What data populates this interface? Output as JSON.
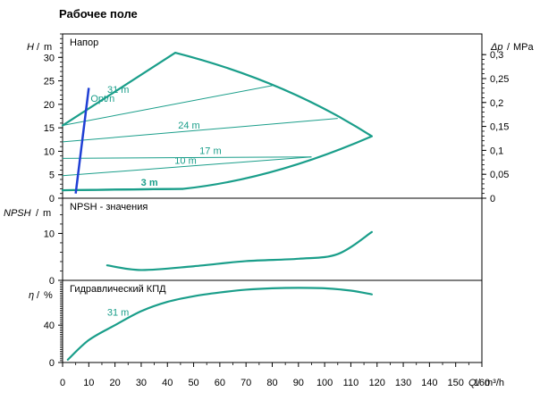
{
  "chart_data": {
    "type": "line",
    "title": "Рабочее поле",
    "x_axis": {
      "label": "Q",
      "unit": "m³/h",
      "range": [
        0,
        160
      ],
      "ticks": [
        "0",
        "10",
        "20",
        "30",
        "40",
        "50",
        "60",
        "70",
        "80",
        "90",
        "100",
        "110",
        "120",
        "130",
        "140",
        "150",
        "160"
      ]
    },
    "panels": [
      {
        "name": "Напор",
        "y_label": "H",
        "y_unit": "m",
        "y_range": [
          0,
          35
        ],
        "y_ticks": [
          "0",
          "5",
          "10",
          "15",
          "20",
          "25",
          "30"
        ],
        "y2_label": "Δp",
        "y2_unit": "MPa",
        "y2_ticks": [
          "0",
          "0,05",
          "0,1",
          "0,15",
          "0,2",
          "0,25",
          "0,3"
        ],
        "y2_values": [
          0,
          0.05,
          0.1,
          0.15,
          0.2,
          0.25,
          0.3
        ],
        "envelope": {
          "x": [
            0,
            43,
            118,
            46,
            0
          ],
          "y": [
            15.5,
            31,
            13.2,
            2,
            1.7
          ]
        },
        "speed_lines": [
          {
            "name": "31 m",
            "x": [
              0,
              80
            ],
            "y": [
              15.5,
              24
            ]
          },
          {
            "name": "24 m",
            "x": [
              0,
              105
            ],
            "y": [
              12,
              17
            ]
          },
          {
            "name": "17 m",
            "x": [
              0,
              95
            ],
            "y": [
              8.5,
              8.8
            ]
          },
          {
            "name": "10 m",
            "x": [
              0,
              95
            ],
            "y": [
              4.8,
              8.8
            ]
          },
          {
            "name": "3 m",
            "x": [
              0,
              46
            ],
            "y": [
              1.7,
              2
            ]
          }
        ],
        "operating_point": {
          "name": "Opt/n",
          "x": [
            5,
            10
          ],
          "y": [
            1,
            23.5
          ]
        }
      },
      {
        "name": "NPSH - значения",
        "y_label": "NPSH",
        "y_unit": "m",
        "y_range": [
          0,
          17.5
        ],
        "y_ticks": [
          "0",
          "10"
        ],
        "series": {
          "x": [
            17,
            30,
            50,
            70,
            90,
            105,
            118
          ],
          "y": [
            3.2,
            2.2,
            3.0,
            4.1,
            4.6,
            5.6,
            10.3
          ]
        }
      },
      {
        "name": "Гидравлический КПД",
        "y_label": "η",
        "y_unit": "%",
        "y_range": [
          0,
          88
        ],
        "y_ticks": [
          "0",
          "40"
        ],
        "series": {
          "name": "31 m",
          "x": [
            2,
            10,
            20,
            30,
            40,
            50,
            60,
            70,
            80,
            90,
            100,
            110,
            118
          ],
          "y": [
            3,
            24,
            40,
            55,
            65,
            71,
            75,
            78,
            79.5,
            80,
            79.5,
            77,
            73
          ]
        }
      }
    ]
  }
}
